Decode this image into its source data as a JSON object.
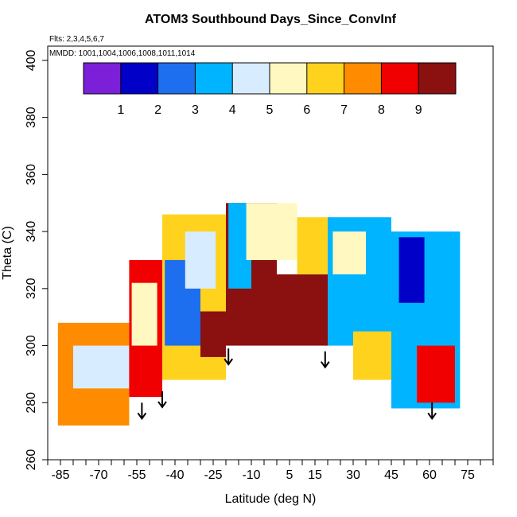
{
  "chart_data": {
    "type": "heatmap",
    "title": "ATOM3 Southbound Days_Since_ConvInf",
    "annotations": [
      "Flts: 2,3,4,5,6,7",
      "MMDD: 1001,1004,1006,1008,1011,1014"
    ],
    "xlabel": "Latitude (deg N)",
    "ylabel": "Theta (C)",
    "xlim": [
      -90,
      85
    ],
    "ylim": [
      260,
      405
    ],
    "x_ticks": [
      "-85",
      "-70",
      "-55",
      "-40",
      "-25",
      "-10",
      "5",
      "15",
      "30",
      "45",
      "60",
      "75"
    ],
    "y_ticks": [
      "260",
      "280",
      "300",
      "320",
      "340",
      "360",
      "380",
      "400"
    ],
    "colorbar": {
      "range": [
        0,
        10
      ],
      "tick_labels": [
        "1",
        "2",
        "3",
        "4",
        "5",
        "6",
        "7",
        "8",
        "9"
      ],
      "colors": [
        "#7b1fd9",
        "#0000c8",
        "#1e6ef0",
        "#00b4ff",
        "#d8ecff",
        "#fff8c0",
        "#ffd21e",
        "#ff8c00",
        "#f00000",
        "#8b1010"
      ]
    },
    "arrows": [
      {
        "lat": -53,
        "theta": 280
      },
      {
        "lat": -45,
        "theta": 284
      },
      {
        "lat": -19,
        "theta": 299
      },
      {
        "lat": 19,
        "theta": 298
      },
      {
        "lat": 61,
        "theta": 280
      }
    ],
    "regions": [
      {
        "lat": -86,
        "lat2": -58,
        "theta": 272,
        "theta2": 308,
        "value": 7
      },
      {
        "lat": -80,
        "lat2": -58,
        "theta": 285,
        "theta2": 300,
        "value": 4
      },
      {
        "lat": -58,
        "lat2": -45,
        "theta": 282,
        "theta2": 330,
        "value": 8
      },
      {
        "lat": -57,
        "lat2": -47,
        "theta": 300,
        "theta2": 322,
        "value": 5
      },
      {
        "lat": -45,
        "lat2": -20,
        "theta": 288,
        "theta2": 346,
        "value": 6
      },
      {
        "lat": -44,
        "lat2": -30,
        "theta": 300,
        "theta2": 330,
        "value": 2
      },
      {
        "lat": -36,
        "lat2": -24,
        "theta": 320,
        "theta2": 340,
        "value": 4
      },
      {
        "lat": -30,
        "lat2": -20,
        "theta": 296,
        "theta2": 312,
        "value": 9
      },
      {
        "lat": -20,
        "lat2": 0,
        "theta": 300,
        "theta2": 350,
        "value": 9
      },
      {
        "lat": -19,
        "lat2": -10,
        "theta": 320,
        "theta2": 350,
        "value": 3
      },
      {
        "lat": -12,
        "lat2": 8,
        "theta": 330,
        "theta2": 350,
        "value": 5
      },
      {
        "lat": 0,
        "lat2": 20,
        "theta": 300,
        "theta2": 325,
        "value": 9
      },
      {
        "lat": 8,
        "lat2": 22,
        "theta": 325,
        "theta2": 345,
        "value": 6
      },
      {
        "lat": 20,
        "lat2": 45,
        "theta": 300,
        "theta2": 345,
        "value": 3
      },
      {
        "lat": 22,
        "lat2": 35,
        "theta": 325,
        "theta2": 340,
        "value": 5
      },
      {
        "lat": 30,
        "lat2": 45,
        "theta": 288,
        "theta2": 305,
        "value": 6
      },
      {
        "lat": 45,
        "lat2": 72,
        "theta": 278,
        "theta2": 340,
        "value": 3
      },
      {
        "lat": 48,
        "lat2": 58,
        "theta": 315,
        "theta2": 338,
        "value": 1
      },
      {
        "lat": 55,
        "lat2": 70,
        "theta": 280,
        "theta2": 300,
        "value": 8
      }
    ]
  }
}
